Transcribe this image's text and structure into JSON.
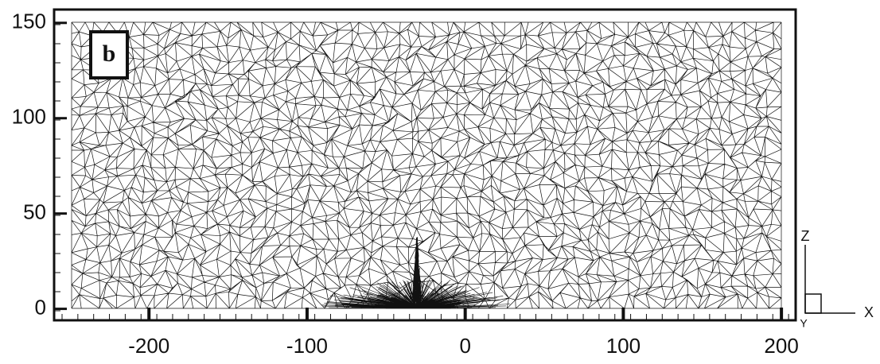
{
  "chart_data": {
    "type": "mesh",
    "panel_label": "b",
    "xlim": [
      -260,
      209
    ],
    "ylim": [
      -6,
      157
    ],
    "xticks": [
      -200,
      -100,
      0,
      100,
      200
    ],
    "yticks": [
      0,
      50,
      100,
      150
    ],
    "axis_triad": {
      "z": "Z",
      "x": "X",
      "y": "Y"
    },
    "color": "#111111"
  }
}
